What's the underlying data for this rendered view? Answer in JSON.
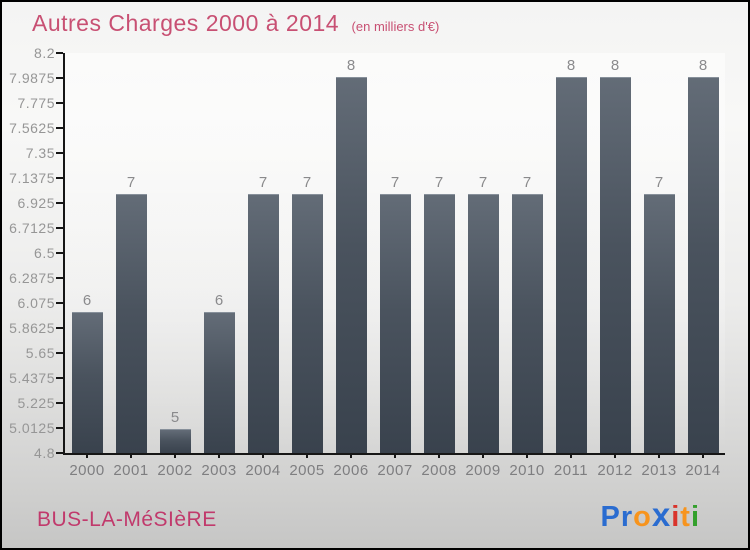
{
  "title": {
    "text": "Autres Charges 2000 à 2014",
    "subtitle": "(en milliers d'€)"
  },
  "footer": {
    "commune": "BUS-LA-MéSIèRE"
  },
  "logo": {
    "name": "Proxiti",
    "letters": [
      {
        "ch": "P",
        "color": "#2a6cd0",
        "big": false
      },
      {
        "ch": "r",
        "color": "#2a6cd0",
        "big": false
      },
      {
        "ch": "o",
        "color": "#f7941d",
        "big": false
      },
      {
        "ch": "x",
        "color": "#2a6cd0",
        "big": true
      },
      {
        "ch": "i",
        "color": "#d9342b",
        "big": false
      },
      {
        "ch": "t",
        "color": "#f7941d",
        "big": false
      },
      {
        "ch": "i",
        "color": "#33a02c",
        "big": false
      }
    ]
  },
  "chart_data": {
    "type": "bar",
    "title": "Autres Charges 2000 à 2014",
    "subtitle": "(en milliers d'€)",
    "categories": [
      "2000",
      "2001",
      "2002",
      "2003",
      "2004",
      "2005",
      "2006",
      "2007",
      "2008",
      "2009",
      "2010",
      "2011",
      "2012",
      "2013",
      "2014"
    ],
    "values": [
      6,
      7,
      5,
      6,
      7,
      7,
      8,
      7,
      7,
      7,
      7,
      8,
      8,
      7,
      8
    ],
    "value_labels": [
      "6",
      "7",
      "5",
      "6",
      "7",
      "7",
      "8",
      "7",
      "7",
      "7",
      "7",
      "8",
      "8",
      "7",
      "8"
    ],
    "xlabel": "",
    "ylabel": "",
    "ylim": [
      4.8,
      8.2
    ],
    "ytick_labels": [
      "8.2",
      "7.9875",
      "7.775",
      "7.5625",
      "7.35",
      "7.1375",
      "6.925",
      "6.7125",
      "6.5",
      "6.2875",
      "6.075",
      "5.8625",
      "5.65",
      "5.4375",
      "5.225",
      "5.0125",
      "4.8"
    ],
    "grid": false,
    "legend": false,
    "bar_color_top": "#636c77",
    "bar_color_bottom": "#39424d",
    "axis_color": "#161616",
    "tick_label_color": "#969696",
    "value_label_color": "#8a8a8c",
    "title_color": "#c85073",
    "commune_color": "#c13a6c"
  }
}
